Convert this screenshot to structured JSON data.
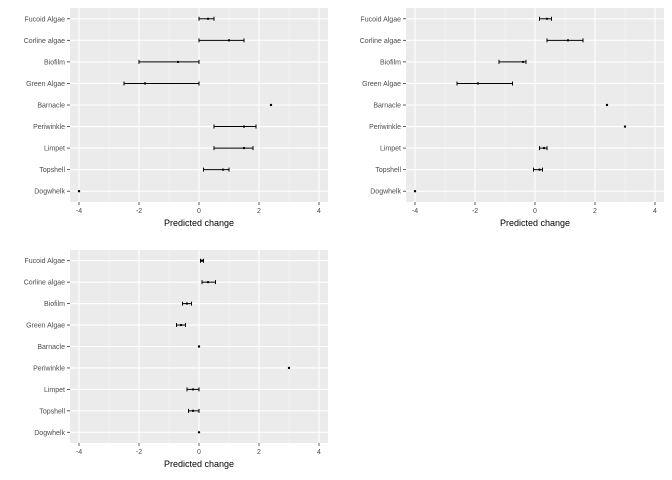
{
  "chart_data": [
    {
      "type": "errorbar",
      "xlabel": "Predicted change",
      "xlim": [
        -4.3,
        4.3
      ],
      "x_ticks": [
        -4,
        -2,
        0,
        2,
        4
      ],
      "x_tick_labels": [
        "-4",
        "-2",
        "0",
        "2",
        "4"
      ],
      "categories": [
        "Fucoid Algae",
        "Corline algae",
        "Biofilm",
        "Green Algae",
        "Barnacle",
        "Periwinkle",
        "Limpet",
        "Topshell",
        "Dogwhelk"
      ],
      "points": [
        {
          "category": "Fucoid Algae",
          "value": 0.3,
          "low": 0.0,
          "high": 0.5
        },
        {
          "category": "Corline algae",
          "value": 1.0,
          "low": 0.0,
          "high": 1.5
        },
        {
          "category": "Biofilm",
          "value": -0.7,
          "low": -2.0,
          "high": 0.0
        },
        {
          "category": "Green Algae",
          "value": -1.8,
          "low": -2.5,
          "high": 0.0
        },
        {
          "category": "Barnacle",
          "value": 2.4,
          "low": 2.4,
          "high": 2.4
        },
        {
          "category": "Periwinkle",
          "value": 1.5,
          "low": 0.5,
          "high": 1.9
        },
        {
          "category": "Limpet",
          "value": 1.5,
          "low": 0.5,
          "high": 1.8
        },
        {
          "category": "Topshell",
          "value": 0.8,
          "low": 0.15,
          "high": 1.0
        },
        {
          "category": "Dogwhelk",
          "value": -4.0,
          "low": -4.0,
          "high": -4.0
        }
      ]
    },
    {
      "type": "errorbar",
      "xlabel": "Predicted change",
      "xlim": [
        -4.3,
        4.3
      ],
      "x_ticks": [
        -4,
        -2,
        0,
        2,
        4
      ],
      "x_tick_labels": [
        "-4",
        "-2",
        "0",
        "2",
        "4"
      ],
      "categories": [
        "Fucoid Algae",
        "Corline algae",
        "Biofilm",
        "Green Algae",
        "Barnacle",
        "Periwinkle",
        "Limpet",
        "Topshell",
        "Dogwhelk"
      ],
      "points": [
        {
          "category": "Fucoid Algae",
          "value": 0.4,
          "low": 0.15,
          "high": 0.55
        },
        {
          "category": "Corline algae",
          "value": 1.1,
          "low": 0.4,
          "high": 1.6
        },
        {
          "category": "Biofilm",
          "value": -0.4,
          "low": -1.2,
          "high": -0.3
        },
        {
          "category": "Green Algae",
          "value": -1.9,
          "low": -2.6,
          "high": -0.75
        },
        {
          "category": "Barnacle",
          "value": 2.4,
          "low": 2.4,
          "high": 2.4
        },
        {
          "category": "Periwinkle",
          "value": 3.0,
          "low": 3.0,
          "high": 3.0
        },
        {
          "category": "Limpet",
          "value": 0.3,
          "low": 0.15,
          "high": 0.4
        },
        {
          "category": "Topshell",
          "value": 0.15,
          "low": -0.05,
          "high": 0.25
        },
        {
          "category": "Dogwhelk",
          "value": -4.0,
          "low": -4.0,
          "high": -4.0
        }
      ]
    },
    {
      "type": "errorbar",
      "xlabel": "Predicted change",
      "xlim": [
        -4.3,
        4.3
      ],
      "x_ticks": [
        -4,
        -2,
        0,
        2,
        4
      ],
      "x_tick_labels": [
        "-4",
        "-2",
        "0",
        "2",
        "4"
      ],
      "categories": [
        "Fucoid Algae",
        "Corline algae",
        "Biofilm",
        "Green Algae",
        "Barnacle",
        "Periwinkle",
        "Limpet",
        "Topshell",
        "Dogwhelk"
      ],
      "points": [
        {
          "category": "Fucoid Algae",
          "value": 0.1,
          "low": 0.05,
          "high": 0.15
        },
        {
          "category": "Corline algae",
          "value": 0.3,
          "low": 0.1,
          "high": 0.55
        },
        {
          "category": "Biofilm",
          "value": -0.4,
          "low": -0.55,
          "high": -0.25
        },
        {
          "category": "Green Algae",
          "value": -0.6,
          "low": -0.75,
          "high": -0.45
        },
        {
          "category": "Barnacle",
          "value": 0.0,
          "low": 0.0,
          "high": 0.0
        },
        {
          "category": "Periwinkle",
          "value": 3.0,
          "low": 3.0,
          "high": 3.0
        },
        {
          "category": "Limpet",
          "value": -0.2,
          "low": -0.4,
          "high": 0.0
        },
        {
          "category": "Topshell",
          "value": -0.2,
          "low": -0.35,
          "high": 0.0
        },
        {
          "category": "Dogwhelk",
          "value": 0.0,
          "low": 0.0,
          "high": 0.0
        }
      ]
    }
  ]
}
